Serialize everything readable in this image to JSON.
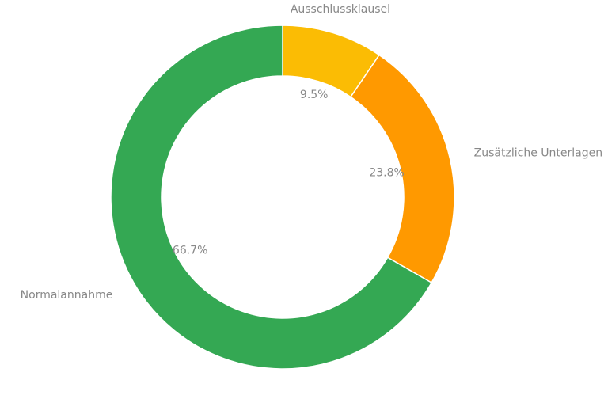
{
  "chart_data": {
    "type": "pie",
    "variant": "donut",
    "title": "",
    "categories": [
      "Ausschlussklausel",
      "Zusätzliche Unterlagen",
      "Normalannahme"
    ],
    "values": [
      9.5,
      23.8,
      66.7
    ],
    "value_labels": [
      "9.5%",
      "23.8%",
      "66.7%"
    ],
    "unit": "%",
    "colors": [
      "#FBBC04",
      "#FF9900",
      "#34A853"
    ],
    "start": "top",
    "direction": "clockwise",
    "legend": "none"
  }
}
